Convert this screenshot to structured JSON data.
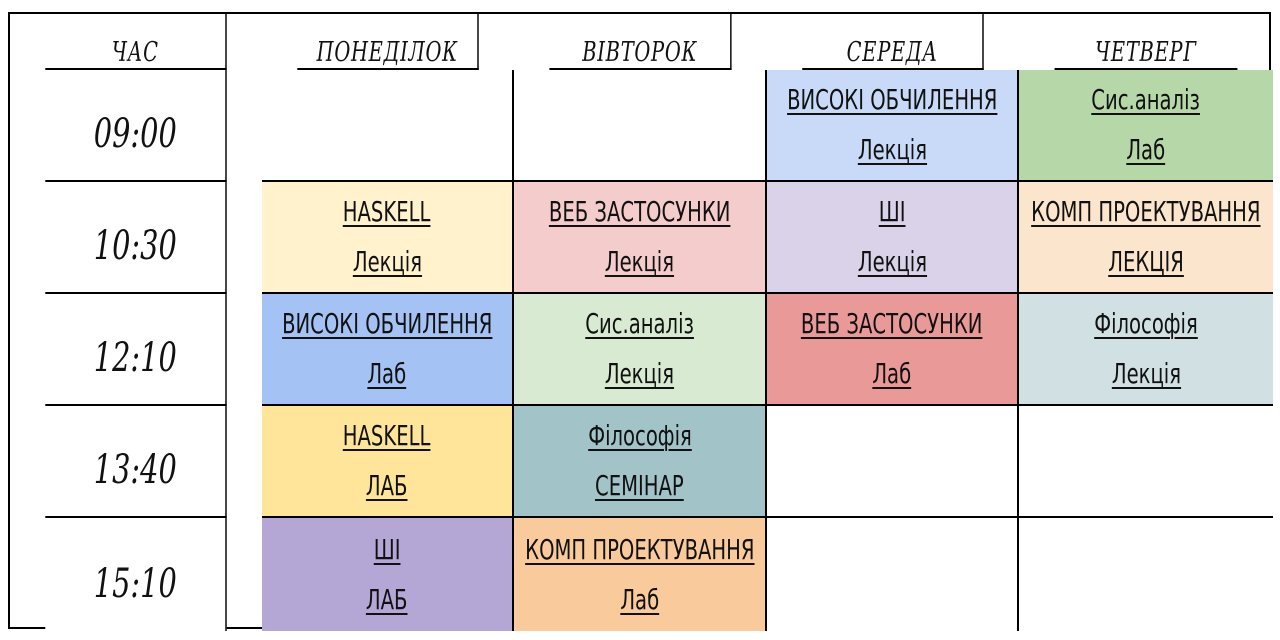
{
  "headers": [
    "Час",
    "Понеділок",
    "Вівторок",
    "Середа",
    "Четверг"
  ],
  "rows": [
    {
      "time": "09:00",
      "cells": [
        null,
        null,
        {
          "title": "Високі обчилення",
          "type": "Лекція",
          "color": "#c9daf8"
        },
        {
          "title": "Сис.аналіз",
          "type": "Лаб",
          "color": "#b6d7a8"
        }
      ]
    },
    {
      "time": "10:30",
      "cells": [
        {
          "title": "Haskell",
          "type": "Лекція",
          "color": "#fff2cc"
        },
        {
          "title": "Веб застосунки",
          "type": "Лекція",
          "color": "#f4cccc"
        },
        {
          "title": "ШІ",
          "type": "Лекція",
          "color": "#d9d2e9"
        },
        {
          "title": "комп проектування",
          "type": "лекція",
          "color": "#fce5cd"
        }
      ]
    },
    {
      "time": "12:10",
      "cells": [
        {
          "title": "Високі обчилення",
          "type": "Лаб",
          "color": "#a4c2f4"
        },
        {
          "title": "Сис.аналіз",
          "type": "Лекція",
          "color": "#d9ead3"
        },
        {
          "title": "Веб застосунки",
          "type": "Лаб",
          "color": "#ea9999"
        },
        {
          "title": "Філософія",
          "type": "Лекція",
          "color": "#d0e0e3"
        }
      ]
    },
    {
      "time": "13:40",
      "cells": [
        {
          "title": "haskell",
          "type": "лаб",
          "color": "#ffe599"
        },
        {
          "title": "Філософія",
          "type": "Семінар",
          "color": "#a2c4c9"
        },
        null,
        null
      ]
    },
    {
      "time": "15:10",
      "cells": [
        {
          "title": "ШІ",
          "type": "лаб",
          "color": "#b4a7d6"
        },
        {
          "title": "комп проектування",
          "type": "Лаб",
          "color": "#f9cb9c"
        },
        null,
        null
      ]
    }
  ]
}
